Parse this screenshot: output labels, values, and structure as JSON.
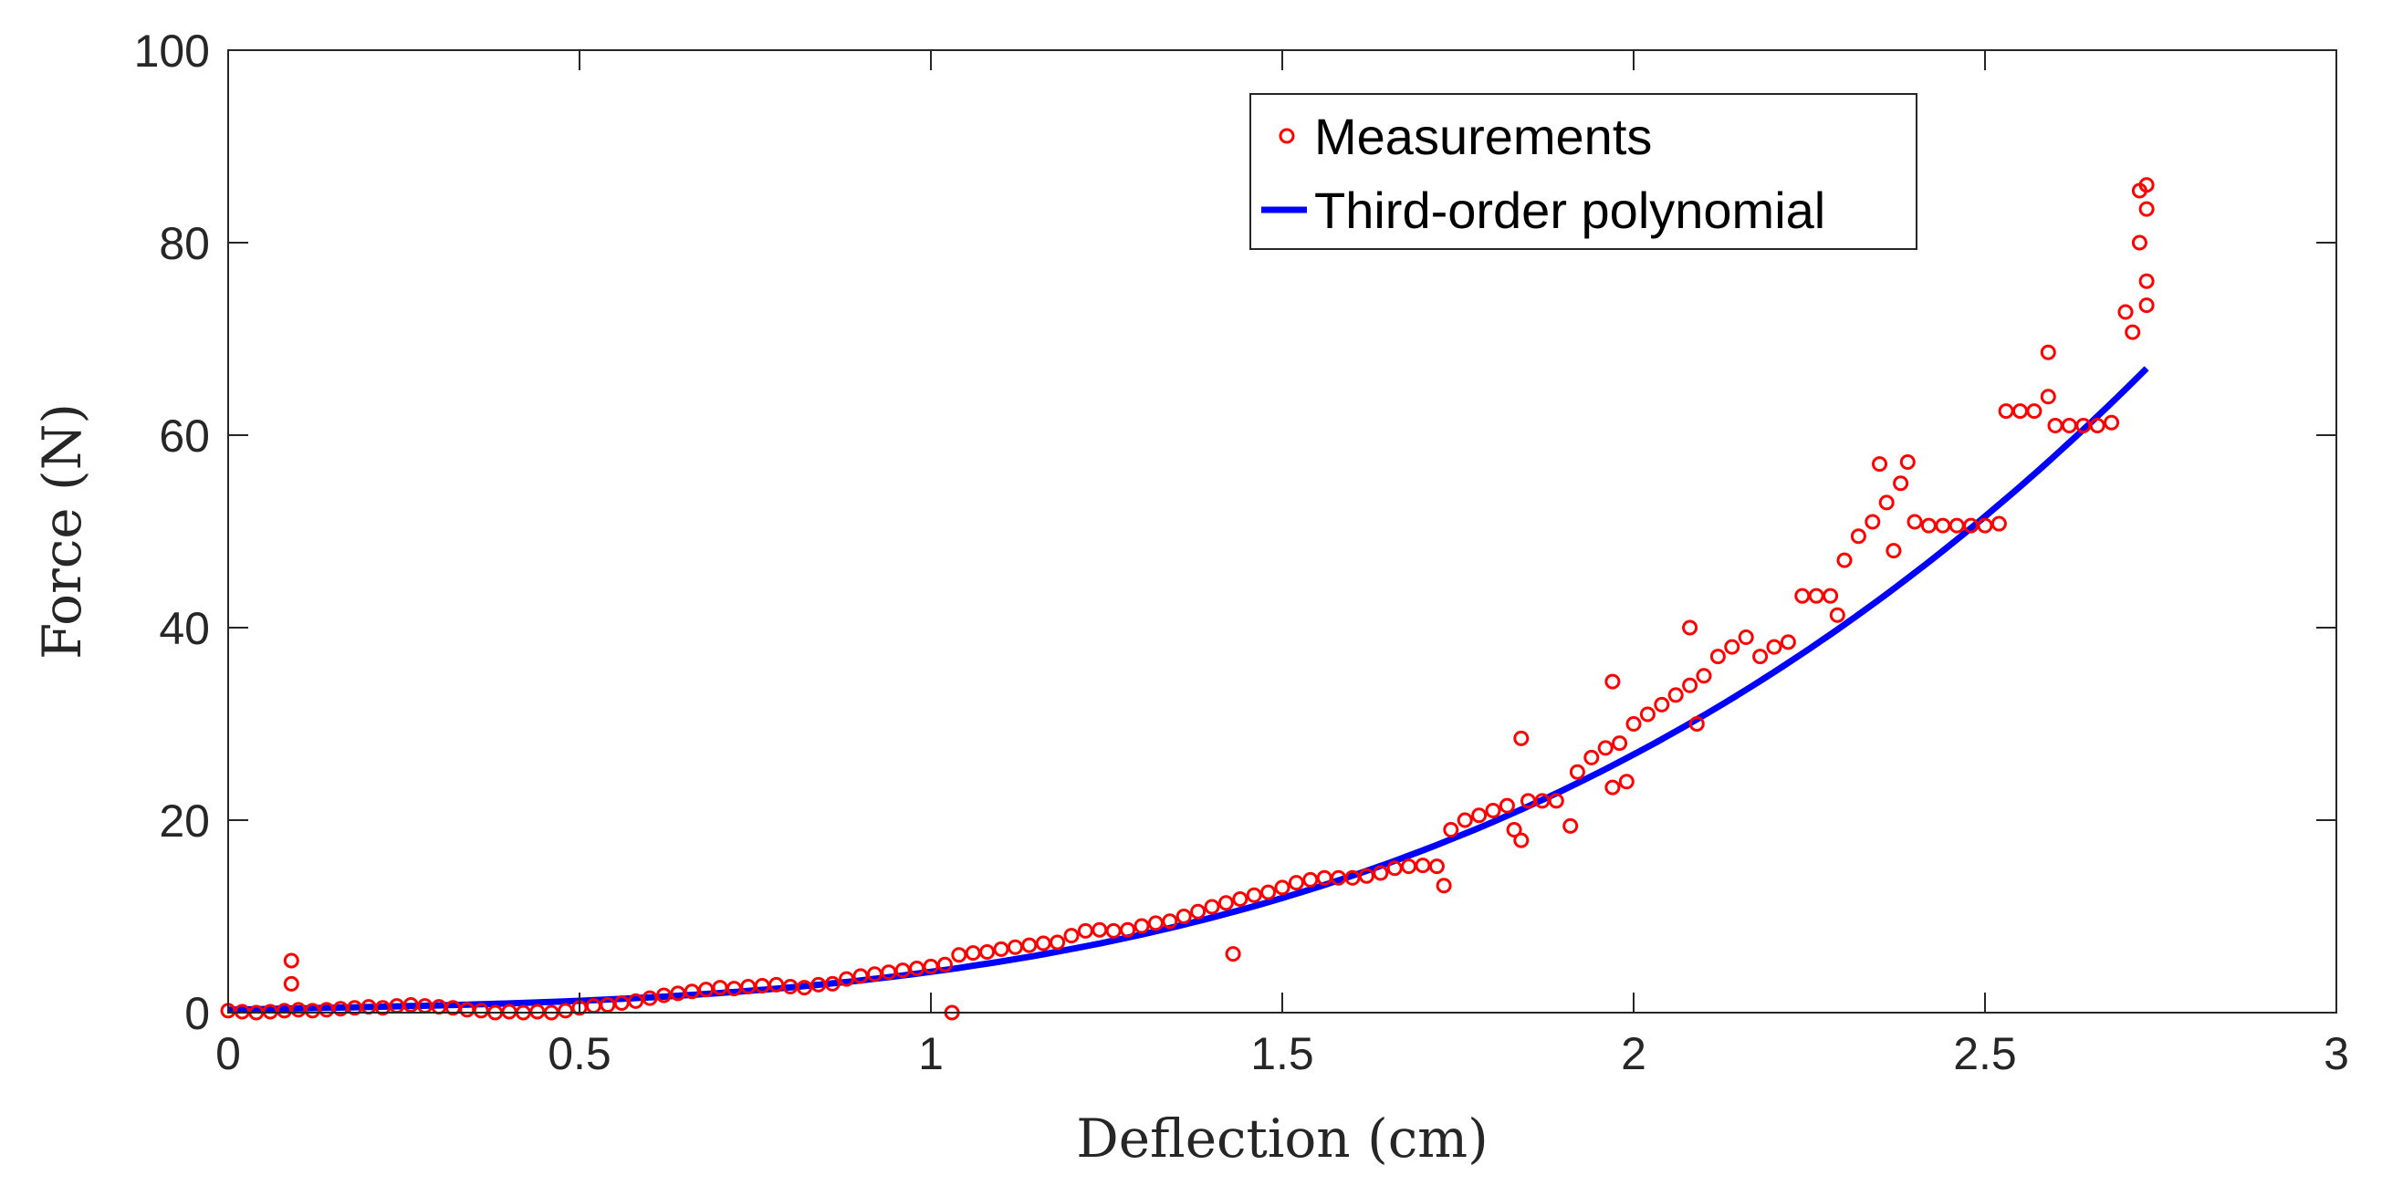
{
  "chart_data": {
    "type": "scatter",
    "title": "",
    "xlabel": "Deflection (cm)",
    "ylabel": "Force (N)",
    "xlim": [
      0,
      3
    ],
    "ylim": [
      0,
      100
    ],
    "xticks": [
      0,
      0.5,
      1,
      1.5,
      2,
      2.5,
      3
    ],
    "yticks": [
      0,
      20,
      40,
      60,
      80,
      100
    ],
    "xtick_labels": [
      "0",
      "0.5",
      "1",
      "1.5",
      "2",
      "2.5",
      "3"
    ],
    "ytick_labels": [
      "0",
      "20",
      "40",
      "60",
      "80",
      "100"
    ],
    "grid": false,
    "legend_position": "top-right",
    "colors": {
      "measurements": "#ff0000",
      "fit": "#0000ff",
      "axes": "#262626"
    },
    "series": [
      {
        "name": "Measurements",
        "kind": "scatter",
        "marker": "circle-open",
        "points": [
          [
            0.0,
            0.2
          ],
          [
            0.02,
            0.1
          ],
          [
            0.04,
            0.0
          ],
          [
            0.06,
            0.1
          ],
          [
            0.08,
            0.2
          ],
          [
            0.09,
            5.4
          ],
          [
            0.09,
            3.0
          ],
          [
            0.1,
            0.3
          ],
          [
            0.12,
            0.2
          ],
          [
            0.14,
            0.3
          ],
          [
            0.16,
            0.4
          ],
          [
            0.18,
            0.5
          ],
          [
            0.2,
            0.6
          ],
          [
            0.22,
            0.5
          ],
          [
            0.24,
            0.7
          ],
          [
            0.26,
            0.8
          ],
          [
            0.28,
            0.7
          ],
          [
            0.3,
            0.6
          ],
          [
            0.32,
            0.5
          ],
          [
            0.34,
            0.3
          ],
          [
            0.36,
            0.2
          ],
          [
            0.38,
            0.0
          ],
          [
            0.4,
            0.1
          ],
          [
            0.42,
            0.0
          ],
          [
            0.44,
            0.1
          ],
          [
            0.46,
            0.0
          ],
          [
            0.48,
            0.2
          ],
          [
            0.5,
            0.5
          ],
          [
            0.52,
            0.7
          ],
          [
            0.54,
            0.8
          ],
          [
            0.56,
            1.0
          ],
          [
            0.58,
            1.2
          ],
          [
            0.6,
            1.5
          ],
          [
            0.62,
            1.8
          ],
          [
            0.64,
            2.0
          ],
          [
            0.66,
            2.2
          ],
          [
            0.68,
            2.4
          ],
          [
            0.7,
            2.6
          ],
          [
            0.72,
            2.5
          ],
          [
            0.74,
            2.7
          ],
          [
            0.76,
            2.8
          ],
          [
            0.78,
            2.9
          ],
          [
            0.8,
            2.7
          ],
          [
            0.82,
            2.6
          ],
          [
            0.84,
            2.9
          ],
          [
            0.86,
            3.0
          ],
          [
            0.88,
            3.5
          ],
          [
            0.9,
            3.8
          ],
          [
            0.92,
            4.0
          ],
          [
            0.94,
            4.2
          ],
          [
            0.96,
            4.4
          ],
          [
            0.98,
            4.6
          ],
          [
            1.0,
            4.8
          ],
          [
            1.02,
            5.0
          ],
          [
            1.03,
            0.0
          ],
          [
            1.04,
            6.0
          ],
          [
            1.06,
            6.2
          ],
          [
            1.08,
            6.3
          ],
          [
            1.1,
            6.6
          ],
          [
            1.12,
            6.8
          ],
          [
            1.14,
            7.0
          ],
          [
            1.16,
            7.2
          ],
          [
            1.18,
            7.3
          ],
          [
            1.2,
            8.0
          ],
          [
            1.22,
            8.5
          ],
          [
            1.24,
            8.6
          ],
          [
            1.26,
            8.5
          ],
          [
            1.28,
            8.6
          ],
          [
            1.3,
            9.0
          ],
          [
            1.32,
            9.3
          ],
          [
            1.34,
            9.5
          ],
          [
            1.36,
            10.0
          ],
          [
            1.38,
            10.5
          ],
          [
            1.4,
            11.0
          ],
          [
            1.42,
            11.4
          ],
          [
            1.43,
            6.1
          ],
          [
            1.44,
            11.8
          ],
          [
            1.46,
            12.2
          ],
          [
            1.48,
            12.5
          ],
          [
            1.5,
            13.0
          ],
          [
            1.52,
            13.5
          ],
          [
            1.54,
            13.8
          ],
          [
            1.56,
            14.0
          ],
          [
            1.58,
            14.0
          ],
          [
            1.6,
            14.0
          ],
          [
            1.62,
            14.2
          ],
          [
            1.64,
            14.5
          ],
          [
            1.66,
            15.0
          ],
          [
            1.68,
            15.2
          ],
          [
            1.7,
            15.3
          ],
          [
            1.72,
            15.2
          ],
          [
            1.73,
            13.2
          ],
          [
            1.74,
            19.0
          ],
          [
            1.76,
            20.0
          ],
          [
            1.78,
            20.5
          ],
          [
            1.8,
            21.0
          ],
          [
            1.82,
            21.5
          ],
          [
            1.83,
            19.0
          ],
          [
            1.84,
            28.5
          ],
          [
            1.84,
            17.9
          ],
          [
            1.85,
            22.0
          ],
          [
            1.87,
            22.0
          ],
          [
            1.89,
            22.0
          ],
          [
            1.91,
            19.4
          ],
          [
            1.92,
            25.0
          ],
          [
            1.94,
            26.5
          ],
          [
            1.96,
            27.5
          ],
          [
            1.97,
            34.4
          ],
          [
            1.97,
            23.4
          ],
          [
            1.98,
            28.0
          ],
          [
            1.99,
            24.0
          ],
          [
            2.0,
            30.0
          ],
          [
            2.02,
            31.0
          ],
          [
            2.04,
            32.0
          ],
          [
            2.06,
            33.0
          ],
          [
            2.08,
            34.0
          ],
          [
            2.08,
            40.0
          ],
          [
            2.09,
            30.0
          ],
          [
            2.1,
            35.0
          ],
          [
            2.12,
            37.0
          ],
          [
            2.14,
            38.0
          ],
          [
            2.16,
            39.0
          ],
          [
            2.18,
            37.0
          ],
          [
            2.2,
            38.0
          ],
          [
            2.22,
            38.5
          ],
          [
            2.24,
            43.3
          ],
          [
            2.26,
            43.3
          ],
          [
            2.28,
            43.3
          ],
          [
            2.29,
            41.3
          ],
          [
            2.3,
            47.0
          ],
          [
            2.32,
            49.5
          ],
          [
            2.34,
            51.0
          ],
          [
            2.35,
            57.0
          ],
          [
            2.36,
            53.0
          ],
          [
            2.37,
            48.0
          ],
          [
            2.38,
            55.0
          ],
          [
            2.39,
            57.2
          ],
          [
            2.4,
            51.0
          ],
          [
            2.42,
            50.6
          ],
          [
            2.44,
            50.6
          ],
          [
            2.46,
            50.6
          ],
          [
            2.48,
            50.6
          ],
          [
            2.5,
            50.6
          ],
          [
            2.52,
            50.8
          ],
          [
            2.53,
            62.5
          ],
          [
            2.55,
            62.5
          ],
          [
            2.57,
            62.5
          ],
          [
            2.59,
            64.0
          ],
          [
            2.59,
            68.6
          ],
          [
            2.6,
            61.0
          ],
          [
            2.62,
            61.0
          ],
          [
            2.64,
            61.0
          ],
          [
            2.66,
            61.0
          ],
          [
            2.68,
            61.3
          ],
          [
            2.7,
            72.8
          ],
          [
            2.71,
            70.7
          ],
          [
            2.72,
            80.0
          ],
          [
            2.72,
            85.4
          ],
          [
            2.73,
            86.0
          ],
          [
            2.73,
            76.0
          ],
          [
            2.73,
            73.5
          ],
          [
            2.73,
            83.5
          ]
        ]
      },
      {
        "name": "Third-order polynomial",
        "kind": "line",
        "polynomial_coefficients": [
          0.3,
          1.5,
          -1.0,
          3.44
        ],
        "x_range": [
          0,
          2.73
        ]
      }
    ]
  }
}
